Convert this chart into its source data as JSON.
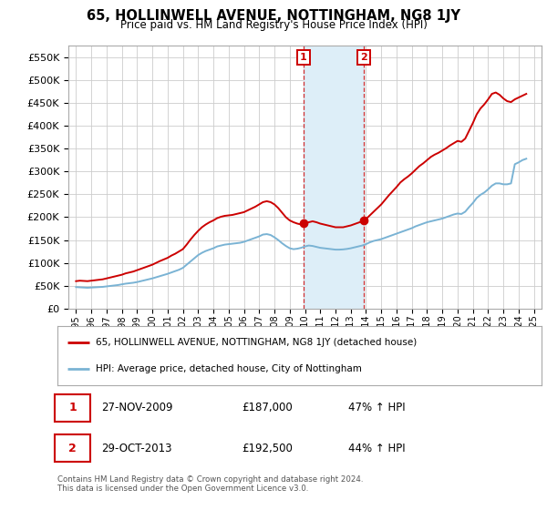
{
  "title": "65, HOLLINWELL AVENUE, NOTTINGHAM, NG8 1JY",
  "subtitle": "Price paid vs. HM Land Registry's House Price Index (HPI)",
  "ylim": [
    0,
    575000
  ],
  "yticks": [
    0,
    50000,
    100000,
    150000,
    200000,
    250000,
    300000,
    350000,
    400000,
    450000,
    500000,
    550000
  ],
  "ytick_labels": [
    "£0",
    "£50K",
    "£100K",
    "£150K",
    "£200K",
    "£250K",
    "£300K",
    "£350K",
    "£400K",
    "£450K",
    "£500K",
    "£550K"
  ],
  "hpi_color": "#7ab3d4",
  "price_color": "#cc0000",
  "marker1_x": 2009.9,
  "marker1_y": 187000,
  "marker2_x": 2013.83,
  "marker2_y": 192500,
  "vline1_x": 2009.9,
  "vline2_x": 2013.83,
  "shade_color": "#ddeef8",
  "legend_price_label": "65, HOLLINWELL AVENUE, NOTTINGHAM, NG8 1JY (detached house)",
  "legend_hpi_label": "HPI: Average price, detached house, City of Nottingham",
  "table_rows": [
    {
      "num": "1",
      "date": "27-NOV-2009",
      "price": "£187,000",
      "hpi": "47% ↑ HPI"
    },
    {
      "num": "2",
      "date": "29-OCT-2013",
      "price": "£192,500",
      "hpi": "44% ↑ HPI"
    }
  ],
  "footnote": "Contains HM Land Registry data © Crown copyright and database right 2024.\nThis data is licensed under the Open Government Licence v3.0.",
  "bg_color": "#ffffff",
  "grid_color": "#cccccc",
  "hpi_data": [
    [
      1995.0,
      47000
    ],
    [
      1995.25,
      46500
    ],
    [
      1995.5,
      46000
    ],
    [
      1995.75,
      45500
    ],
    [
      1996.0,
      46000
    ],
    [
      1996.25,
      46500
    ],
    [
      1996.5,
      47000
    ],
    [
      1996.75,
      47500
    ],
    [
      1997.0,
      48500
    ],
    [
      1997.25,
      49500
    ],
    [
      1997.5,
      50500
    ],
    [
      1997.75,
      51500
    ],
    [
      1998.0,
      53000
    ],
    [
      1998.25,
      54500
    ],
    [
      1998.5,
      55500
    ],
    [
      1998.75,
      56500
    ],
    [
      1999.0,
      58000
    ],
    [
      1999.25,
      60000
    ],
    [
      1999.5,
      62000
    ],
    [
      1999.75,
      64000
    ],
    [
      2000.0,
      66000
    ],
    [
      2000.25,
      68500
    ],
    [
      2000.5,
      71000
    ],
    [
      2000.75,
      73500
    ],
    [
      2001.0,
      76000
    ],
    [
      2001.25,
      79000
    ],
    [
      2001.5,
      82000
    ],
    [
      2001.75,
      85000
    ],
    [
      2002.0,
      89000
    ],
    [
      2002.25,
      96000
    ],
    [
      2002.5,
      103000
    ],
    [
      2002.75,
      110000
    ],
    [
      2003.0,
      117000
    ],
    [
      2003.25,
      122000
    ],
    [
      2003.5,
      126000
    ],
    [
      2003.75,
      129000
    ],
    [
      2004.0,
      132000
    ],
    [
      2004.25,
      136000
    ],
    [
      2004.5,
      138000
    ],
    [
      2004.75,
      140000
    ],
    [
      2005.0,
      141000
    ],
    [
      2005.25,
      142000
    ],
    [
      2005.5,
      143000
    ],
    [
      2005.75,
      144000
    ],
    [
      2006.0,
      146000
    ],
    [
      2006.25,
      149000
    ],
    [
      2006.5,
      152000
    ],
    [
      2006.75,
      155000
    ],
    [
      2007.0,
      158000
    ],
    [
      2007.25,
      162000
    ],
    [
      2007.5,
      163000
    ],
    [
      2007.75,
      161000
    ],
    [
      2008.0,
      156000
    ],
    [
      2008.25,
      150000
    ],
    [
      2008.5,
      143000
    ],
    [
      2008.75,
      137000
    ],
    [
      2009.0,
      132000
    ],
    [
      2009.25,
      130000
    ],
    [
      2009.5,
      131000
    ],
    [
      2009.75,
      133000
    ],
    [
      2010.0,
      136000
    ],
    [
      2010.25,
      138000
    ],
    [
      2010.5,
      137000
    ],
    [
      2010.75,
      135000
    ],
    [
      2011.0,
      133000
    ],
    [
      2011.25,
      132000
    ],
    [
      2011.5,
      131000
    ],
    [
      2011.75,
      130000
    ],
    [
      2012.0,
      129000
    ],
    [
      2012.25,
      129000
    ],
    [
      2012.5,
      129500
    ],
    [
      2012.75,
      130500
    ],
    [
      2013.0,
      132000
    ],
    [
      2013.25,
      134000
    ],
    [
      2013.5,
      136000
    ],
    [
      2013.75,
      138000
    ],
    [
      2014.0,
      141000
    ],
    [
      2014.25,
      145000
    ],
    [
      2014.5,
      148000
    ],
    [
      2014.75,
      150000
    ],
    [
      2015.0,
      152000
    ],
    [
      2015.25,
      155000
    ],
    [
      2015.5,
      158000
    ],
    [
      2015.75,
      161000
    ],
    [
      2016.0,
      164000
    ],
    [
      2016.25,
      167000
    ],
    [
      2016.5,
      170000
    ],
    [
      2016.75,
      173000
    ],
    [
      2017.0,
      176000
    ],
    [
      2017.25,
      180000
    ],
    [
      2017.5,
      183000
    ],
    [
      2017.75,
      186000
    ],
    [
      2018.0,
      189000
    ],
    [
      2018.25,
      191000
    ],
    [
      2018.5,
      193000
    ],
    [
      2018.75,
      195000
    ],
    [
      2019.0,
      197000
    ],
    [
      2019.25,
      200000
    ],
    [
      2019.5,
      203000
    ],
    [
      2019.75,
      206000
    ],
    [
      2020.0,
      208000
    ],
    [
      2020.25,
      207000
    ],
    [
      2020.5,
      212000
    ],
    [
      2020.75,
      222000
    ],
    [
      2021.0,
      231000
    ],
    [
      2021.25,
      242000
    ],
    [
      2021.5,
      249000
    ],
    [
      2021.75,
      254000
    ],
    [
      2022.0,
      261000
    ],
    [
      2022.25,
      269000
    ],
    [
      2022.5,
      274000
    ],
    [
      2022.75,
      274000
    ],
    [
      2023.0,
      272000
    ],
    [
      2023.25,
      272000
    ],
    [
      2023.5,
      274000
    ],
    [
      2023.75,
      316000
    ],
    [
      2024.0,
      320000
    ],
    [
      2024.25,
      325000
    ],
    [
      2024.5,
      328000
    ]
  ],
  "price_data": [
    [
      1995.0,
      60000
    ],
    [
      1995.25,
      61000
    ],
    [
      1995.5,
      60500
    ],
    [
      1995.75,
      60000
    ],
    [
      1996.0,
      61000
    ],
    [
      1996.25,
      62000
    ],
    [
      1996.5,
      63000
    ],
    [
      1996.75,
      64000
    ],
    [
      1997.0,
      66000
    ],
    [
      1997.25,
      68000
    ],
    [
      1997.5,
      70000
    ],
    [
      1997.75,
      72000
    ],
    [
      1998.0,
      74000
    ],
    [
      1998.25,
      77000
    ],
    [
      1998.5,
      79000
    ],
    [
      1998.75,
      81000
    ],
    [
      1999.0,
      84000
    ],
    [
      1999.25,
      87000
    ],
    [
      1999.5,
      90000
    ],
    [
      1999.75,
      93000
    ],
    [
      2000.0,
      96000
    ],
    [
      2000.25,
      100000
    ],
    [
      2000.5,
      104000
    ],
    [
      2000.75,
      107500
    ],
    [
      2001.0,
      111000
    ],
    [
      2001.25,
      116000
    ],
    [
      2001.5,
      120000
    ],
    [
      2001.75,
      125000
    ],
    [
      2002.0,
      130000
    ],
    [
      2002.25,
      140000
    ],
    [
      2002.5,
      151000
    ],
    [
      2002.75,
      161000
    ],
    [
      2003.0,
      170000
    ],
    [
      2003.25,
      178000
    ],
    [
      2003.5,
      184000
    ],
    [
      2003.75,
      189000
    ],
    [
      2004.0,
      193000
    ],
    [
      2004.25,
      198000
    ],
    [
      2004.5,
      201000
    ],
    [
      2004.75,
      203000
    ],
    [
      2005.0,
      204000
    ],
    [
      2005.25,
      205000
    ],
    [
      2005.5,
      207000
    ],
    [
      2005.75,
      209000
    ],
    [
      2006.0,
      211000
    ],
    [
      2006.25,
      215000
    ],
    [
      2006.5,
      219000
    ],
    [
      2006.75,
      223000
    ],
    [
      2007.0,
      228000
    ],
    [
      2007.25,
      233000
    ],
    [
      2007.5,
      235000
    ],
    [
      2007.75,
      233000
    ],
    [
      2008.0,
      228000
    ],
    [
      2008.25,
      220000
    ],
    [
      2008.5,
      210000
    ],
    [
      2008.75,
      200000
    ],
    [
      2009.0,
      193000
    ],
    [
      2009.25,
      189000
    ],
    [
      2009.5,
      186000
    ],
    [
      2009.75,
      184000
    ],
    [
      2010.0,
      186000
    ],
    [
      2010.25,
      189000
    ],
    [
      2010.5,
      191000
    ],
    [
      2010.75,
      189000
    ],
    [
      2011.0,
      186000
    ],
    [
      2011.25,
      184000
    ],
    [
      2011.5,
      182000
    ],
    [
      2011.75,
      180000
    ],
    [
      2012.0,
      178000
    ],
    [
      2012.25,
      178000
    ],
    [
      2012.5,
      178000
    ],
    [
      2012.75,
      180000
    ],
    [
      2013.0,
      182000
    ],
    [
      2013.25,
      185000
    ],
    [
      2013.5,
      188000
    ],
    [
      2013.75,
      191000
    ],
    [
      2014.0,
      196000
    ],
    [
      2014.25,
      204000
    ],
    [
      2014.5,
      212000
    ],
    [
      2014.75,
      220000
    ],
    [
      2015.0,
      228000
    ],
    [
      2015.25,
      238000
    ],
    [
      2015.5,
      248000
    ],
    [
      2015.75,
      257000
    ],
    [
      2016.0,
      266000
    ],
    [
      2016.25,
      276000
    ],
    [
      2016.5,
      283000
    ],
    [
      2016.75,
      289000
    ],
    [
      2017.0,
      296000
    ],
    [
      2017.25,
      304000
    ],
    [
      2017.5,
      312000
    ],
    [
      2017.75,
      318000
    ],
    [
      2018.0,
      325000
    ],
    [
      2018.25,
      332000
    ],
    [
      2018.5,
      337000
    ],
    [
      2018.75,
      341000
    ],
    [
      2019.0,
      346000
    ],
    [
      2019.25,
      351000
    ],
    [
      2019.5,
      357000
    ],
    [
      2019.75,
      362000
    ],
    [
      2020.0,
      367000
    ],
    [
      2020.25,
      365000
    ],
    [
      2020.5,
      372000
    ],
    [
      2020.75,
      389000
    ],
    [
      2021.0,
      406000
    ],
    [
      2021.25,
      425000
    ],
    [
      2021.5,
      438000
    ],
    [
      2021.75,
      447000
    ],
    [
      2022.0,
      458000
    ],
    [
      2022.25,
      470000
    ],
    [
      2022.5,
      473000
    ],
    [
      2022.75,
      468000
    ],
    [
      2023.0,
      460000
    ],
    [
      2023.25,
      454000
    ],
    [
      2023.5,
      452000
    ],
    [
      2023.75,
      458000
    ],
    [
      2024.0,
      462000
    ],
    [
      2024.25,
      466000
    ],
    [
      2024.5,
      470000
    ]
  ],
  "xlim_left": 1994.5,
  "xlim_right": 2025.5,
  "fig_width": 6.0,
  "fig_height": 5.6,
  "dpi": 100
}
